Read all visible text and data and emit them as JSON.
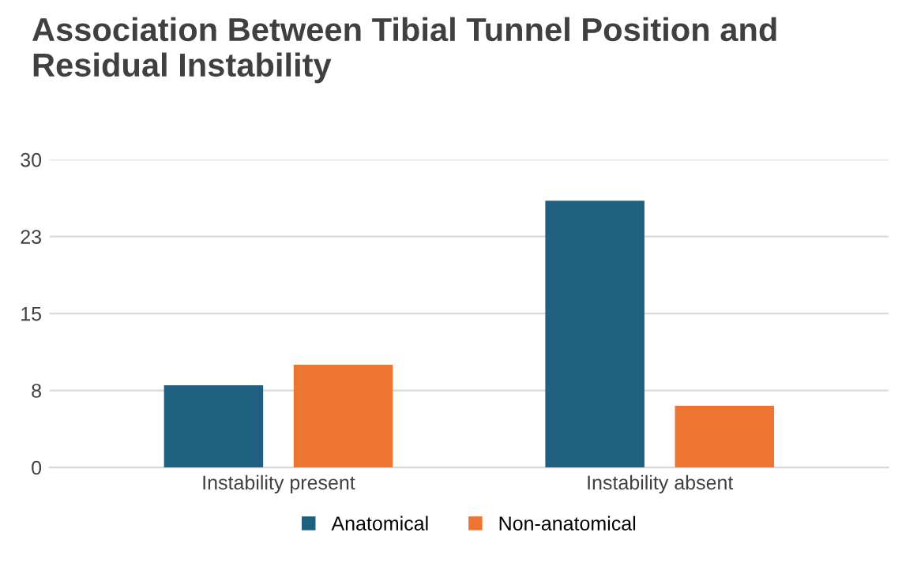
{
  "chart_data": {
    "type": "bar",
    "title": "Association Between Tibial Tunnel Position and Residual Instability",
    "categories": [
      "Instability present",
      "Instability absent"
    ],
    "series": [
      {
        "name": "Anatomical",
        "color": "#1f5f80",
        "values": [
          8,
          26
        ]
      },
      {
        "name": "Non-anatomical",
        "color": "#ed7431",
        "values": [
          10,
          6
        ]
      }
    ],
    "ylim": [
      0,
      30
    ],
    "yticks": [
      0,
      {
        "value": 7.5,
        "label": "8"
      },
      15,
      {
        "value": 22.5,
        "label": "23"
      },
      30
    ],
    "grid": "y",
    "legend": "bottom"
  }
}
